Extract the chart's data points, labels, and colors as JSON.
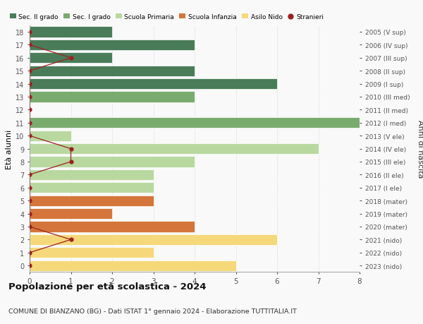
{
  "ages": [
    18,
    17,
    16,
    15,
    14,
    13,
    12,
    11,
    10,
    9,
    8,
    7,
    6,
    5,
    4,
    3,
    2,
    1,
    0
  ],
  "anni_nascita": [
    "2005 (V sup)",
    "2006 (IV sup)",
    "2007 (III sup)",
    "2008 (II sup)",
    "2009 (I sup)",
    "2010 (III med)",
    "2011 (II med)",
    "2012 (I med)",
    "2013 (V ele)",
    "2014 (IV ele)",
    "2015 (III ele)",
    "2016 (II ele)",
    "2017 (I ele)",
    "2018 (mater)",
    "2019 (mater)",
    "2020 (mater)",
    "2021 (nido)",
    "2022 (nido)",
    "2023 (nido)"
  ],
  "bar_values": [
    2,
    4,
    2,
    4,
    6,
    4,
    0,
    8,
    1,
    7,
    4,
    3,
    3,
    3,
    2,
    4,
    6,
    3,
    5
  ],
  "bar_colors": [
    "#4a7c59",
    "#4a7c59",
    "#4a7c59",
    "#4a7c59",
    "#4a7c59",
    "#7aab6e",
    "#7aab6e",
    "#7aab6e",
    "#b8d8a0",
    "#b8d8a0",
    "#b8d8a0",
    "#b8d8a0",
    "#b8d8a0",
    "#d4763b",
    "#d4763b",
    "#d4763b",
    "#f5d87a",
    "#f5d87a",
    "#f5d87a"
  ],
  "stranieri_x": [
    0,
    0,
    1,
    0,
    0,
    0,
    0,
    0,
    0,
    1,
    1,
    0,
    0,
    0,
    0,
    0,
    1,
    0,
    0
  ],
  "legend_labels": [
    "Sec. II grado",
    "Sec. I grado",
    "Scuola Primaria",
    "Scuola Infanzia",
    "Asilo Nido",
    "Stranieri"
  ],
  "legend_colors": [
    "#4a7c59",
    "#7aab6e",
    "#b8d8a0",
    "#d4763b",
    "#f5d87a",
    "#a02020"
  ],
  "ylabel": "Età alunni",
  "right_ylabel": "Anni di nascita",
  "title": "Popolazione per età scolastica - 2024",
  "subtitle": "COMUNE DI BIANZANO (BG) - Dati ISTAT 1° gennaio 2024 - Elaborazione TUTTITALIA.IT",
  "xlim": [
    0,
    8
  ],
  "xticks": [
    0,
    1,
    2,
    3,
    4,
    5,
    6,
    7,
    8
  ],
  "background_color": "#f9f9f9",
  "grid_color": "#dddddd",
  "stranieri_color": "#a02020"
}
